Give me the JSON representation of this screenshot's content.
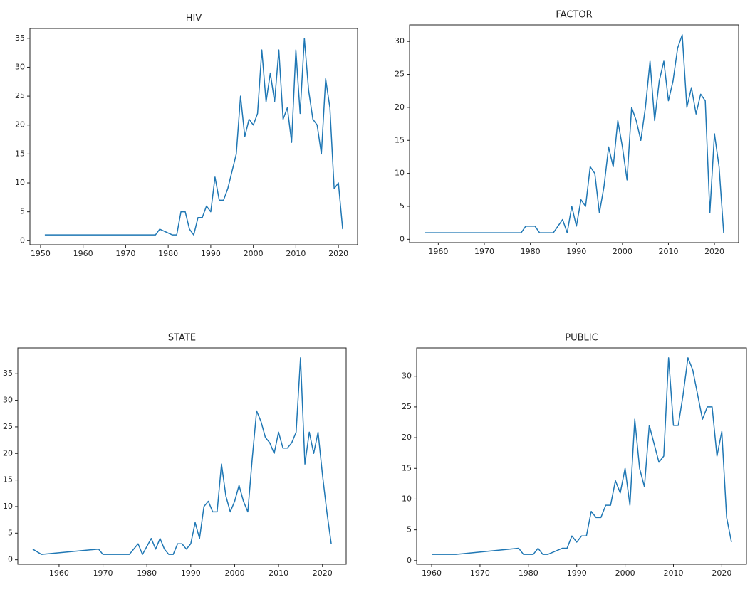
{
  "chart_data": [
    {
      "type": "line",
      "title": "HIV",
      "color": "#1f77b4",
      "x": [
        1951,
        1977,
        1978,
        1981,
        1982,
        1983,
        1984,
        1985,
        1986,
        1987,
        1988,
        1989,
        1990,
        1991,
        1992,
        1993,
        1994,
        1995,
        1996,
        1997,
        1998,
        1999,
        2000,
        2001,
        2002,
        2003,
        2004,
        2005,
        2006,
        2007,
        2008,
        2009,
        2010,
        2011,
        2012,
        2013,
        2014,
        2015,
        2016,
        2017,
        2018,
        2019,
        2020,
        2021
      ],
      "values": [
        1,
        1,
        2,
        1,
        1,
        5,
        5,
        2,
        1,
        4,
        4,
        6,
        5,
        11,
        7,
        7,
        9,
        12,
        15,
        25,
        18,
        21,
        20,
        22,
        33,
        24,
        29,
        24,
        33,
        21,
        23,
        17,
        33,
        22,
        35,
        26,
        21,
        20,
        15,
        28,
        23,
        9,
        10,
        2
      ],
      "xlim": [
        1947.5,
        2024.5
      ],
      "xticks": [
        1950,
        1960,
        1970,
        1980,
        1990,
        2000,
        2010,
        2020
      ],
      "ylim": [
        -0.7,
        36.7
      ],
      "yticks": [
        0,
        5,
        10,
        15,
        20,
        25,
        30,
        35
      ]
    },
    {
      "type": "line",
      "title": "FACTOR",
      "color": "#1f77b4",
      "x": [
        1957,
        1978,
        1979,
        1980,
        1981,
        1982,
        1983,
        1984,
        1985,
        1986,
        1987,
        1988,
        1989,
        1990,
        1991,
        1992,
        1993,
        1994,
        1995,
        1996,
        1997,
        1998,
        1999,
        2000,
        2001,
        2002,
        2003,
        2004,
        2005,
        2006,
        2007,
        2008,
        2009,
        2010,
        2011,
        2012,
        2013,
        2014,
        2015,
        2016,
        2017,
        2018,
        2019,
        2020,
        2021,
        2022
      ],
      "values": [
        1,
        1,
        2,
        2,
        2,
        1,
        1,
        1,
        1,
        2,
        3,
        1,
        5,
        2,
        6,
        5,
        11,
        10,
        4,
        8,
        14,
        11,
        18,
        14,
        9,
        20,
        18,
        15,
        20,
        27,
        18,
        24,
        27,
        21,
        24,
        29,
        31,
        20,
        23,
        19,
        22,
        21,
        4,
        16,
        11,
        1
      ],
      "xlim": [
        1953.75,
        2025.25
      ],
      "xticks": [
        1960,
        1970,
        1980,
        1990,
        2000,
        2010,
        2020
      ],
      "ylim": [
        -0.5,
        32.5
      ],
      "yticks": [
        0,
        5,
        10,
        15,
        20,
        25,
        30
      ]
    },
    {
      "type": "line",
      "title": "STATE",
      "color": "#1f77b4",
      "x": [
        1954,
        1956,
        1969,
        1970,
        1976,
        1978,
        1979,
        1981,
        1982,
        1983,
        1984,
        1985,
        1986,
        1987,
        1988,
        1989,
        1990,
        1991,
        1992,
        1993,
        1994,
        1995,
        1996,
        1997,
        1998,
        1999,
        2000,
        2001,
        2002,
        2003,
        2004,
        2005,
        2006,
        2007,
        2008,
        2009,
        2010,
        2011,
        2012,
        2013,
        2014,
        2015,
        2016,
        2017,
        2018,
        2019,
        2020,
        2021,
        2022
      ],
      "values": [
        2,
        1,
        2,
        1,
        1,
        3,
        1,
        4,
        2,
        4,
        2,
        1,
        1,
        3,
        3,
        2,
        3,
        7,
        4,
        10,
        11,
        9,
        9,
        18,
        12,
        9,
        11,
        14,
        11,
        9,
        19,
        28,
        26,
        23,
        22,
        20,
        24,
        21,
        21,
        22,
        24,
        38,
        18,
        24,
        20,
        24,
        16,
        9,
        3
      ],
      "xlim": [
        1950.6,
        2025.4
      ],
      "xticks": [
        1960,
        1970,
        1980,
        1990,
        2000,
        2010,
        2020
      ],
      "ylim": [
        -0.85,
        39.85
      ],
      "yticks": [
        0,
        5,
        10,
        15,
        20,
        25,
        30,
        35
      ]
    },
    {
      "type": "line",
      "title": "PUBLIC",
      "color": "#1f77b4",
      "x": [
        1960,
        1965,
        1978,
        1979,
        1980,
        1981,
        1982,
        1983,
        1984,
        1987,
        1988,
        1989,
        1990,
        1991,
        1992,
        1993,
        1994,
        1995,
        1996,
        1997,
        1998,
        1999,
        2000,
        2001,
        2002,
        2003,
        2004,
        2005,
        2006,
        2007,
        2008,
        2009,
        2010,
        2011,
        2012,
        2013,
        2014,
        2015,
        2016,
        2017,
        2018,
        2019,
        2020,
        2021,
        2022
      ],
      "values": [
        1,
        1,
        2,
        1,
        1,
        1,
        2,
        1,
        1,
        2,
        2,
        4,
        3,
        4,
        4,
        8,
        7,
        7,
        9,
        9,
        13,
        11,
        15,
        9,
        23,
        15,
        12,
        22,
        19,
        16,
        17,
        33,
        22,
        22,
        27,
        33,
        31,
        27,
        23,
        25,
        25,
        17,
        21,
        7,
        3
      ],
      "xlim": [
        1956.9,
        2025.1
      ],
      "xticks": [
        1960,
        1970,
        1980,
        1990,
        2000,
        2010,
        2020
      ],
      "ylim": [
        -0.6,
        34.6
      ],
      "yticks": [
        0,
        5,
        10,
        15,
        20,
        25,
        30
      ]
    }
  ]
}
